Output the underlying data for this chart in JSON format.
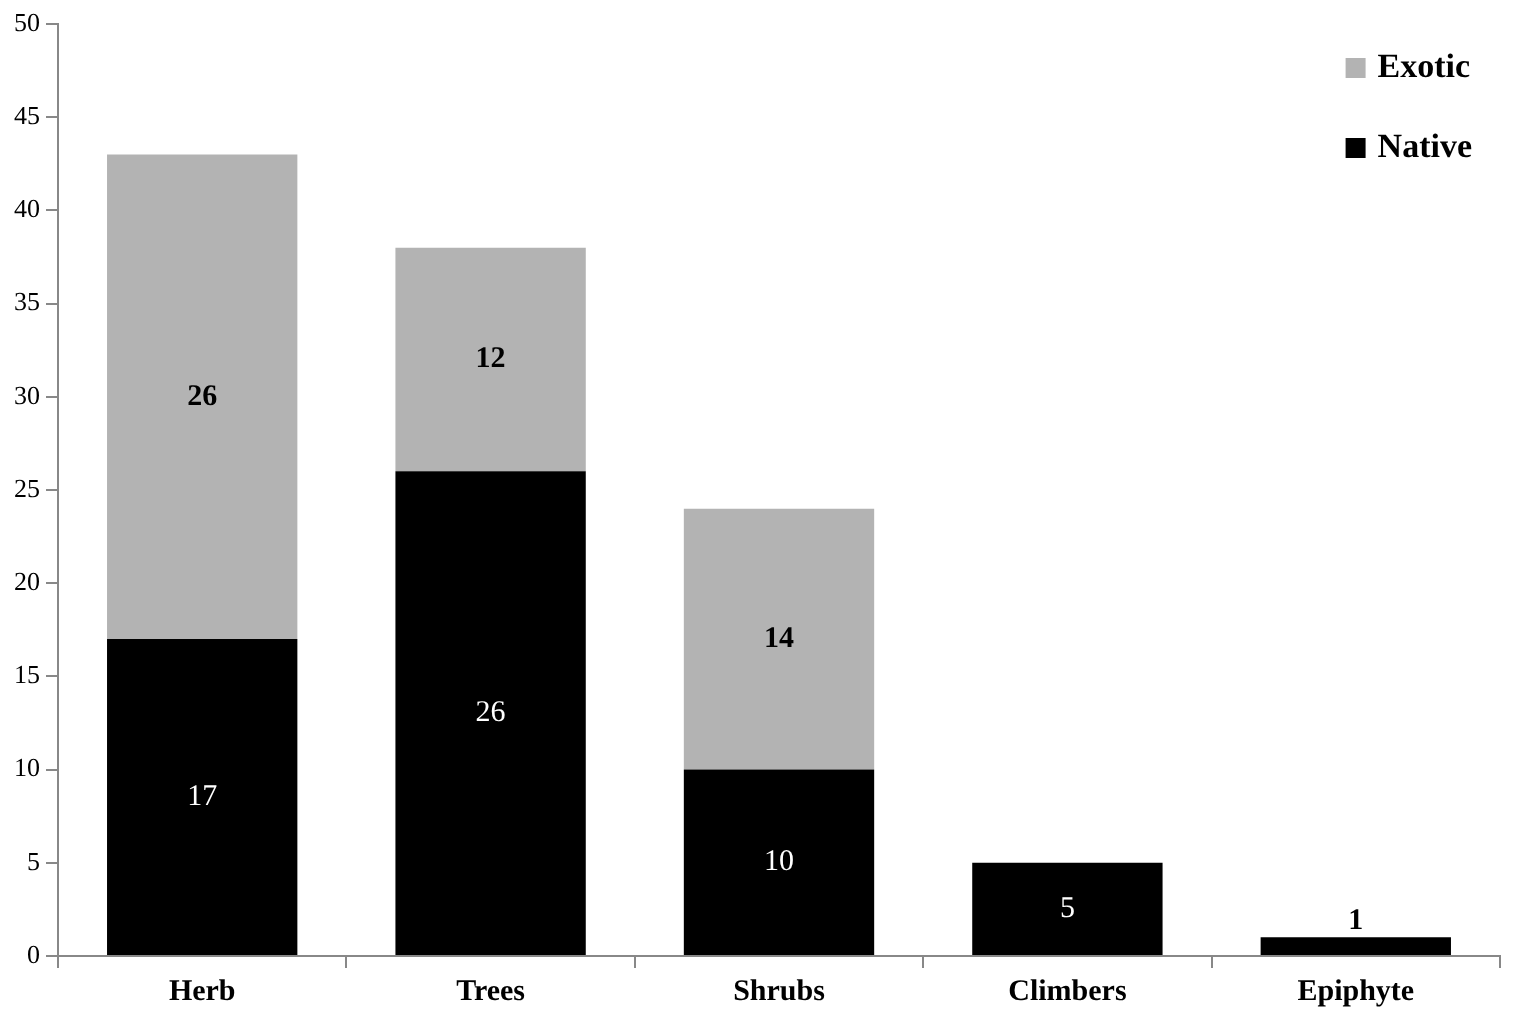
{
  "chart_data": {
    "type": "bar",
    "stacked": true,
    "categories": [
      "Herb",
      "Trees",
      "Shrubs",
      "Climbers",
      "Epiphyte"
    ],
    "series": [
      {
        "name": "Native",
        "color": "#000000",
        "values": [
          17,
          26,
          10,
          5,
          1
        ]
      },
      {
        "name": "Exotic",
        "color": "#b3b3b3",
        "values": [
          26,
          12,
          14,
          null,
          null
        ]
      }
    ],
    "ylim": [
      0,
      50
    ],
    "yticks": [
      0,
      5,
      10,
      15,
      20,
      25,
      30,
      35,
      40,
      45,
      50
    ],
    "grid": false,
    "legend": "top right",
    "data_labels": true
  }
}
